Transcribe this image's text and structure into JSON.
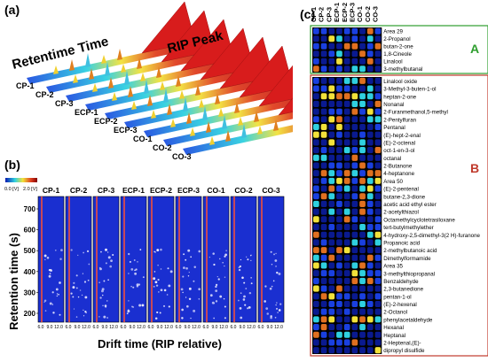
{
  "panel_a": {
    "label": "(a)",
    "axis_retention": "Retentime Time",
    "axis_rip": "RIP Peak",
    "samples": [
      "CP-1",
      "CP-2",
      "CP-3",
      "ECP-1",
      "ECP-2",
      "ECP-3",
      "CO-1",
      "CO-2",
      "CO-3"
    ]
  },
  "panel_b": {
    "label": "(b)",
    "colorbar": {
      "min_label": "0.0 [V]",
      "max_label": "2.0 [V]"
    },
    "samples": [
      "CP-1",
      "CP-2",
      "CP-3",
      "ECP-1",
      "ECP-2",
      "ECP-3",
      "CO-1",
      "CO-2",
      "CO-3"
    ],
    "y_axis_label": "Retention time (s)",
    "y_ticks": [
      "700",
      "600",
      "500",
      "400",
      "300",
      "200"
    ],
    "x_axis_label": "Drift time (RIP relative)",
    "x_ticks": [
      "6.0",
      "9.0",
      "12.0"
    ],
    "colors": {
      "background": "#1a2fd0",
      "spot": "#e8e8ff"
    }
  },
  "panel_c": {
    "label": "(c)",
    "columns": [
      "CP-1",
      "CP-2",
      "CP-3",
      "ECP-1",
      "ECP-2",
      "ECP-3",
      "CO-1",
      "CO-2",
      "CO-3"
    ],
    "group_a": {
      "label": "A",
      "color": "#2e9e2e",
      "compounds": [
        "Area 29",
        "2-Propanol",
        "butan-2-one",
        "1,8-Cineole",
        "Linalool",
        "3-methylbutanal"
      ]
    },
    "group_b": {
      "label": "B",
      "color": "#c0392b",
      "compounds": [
        "Linalool oxide",
        "3-Methyl-3-buten-1-ol",
        "heptan-2-one",
        "Nonanal",
        "2-Furanmethanol,5-methyl",
        "2-Pentylfuran",
        "Pentanal",
        "(E)-hept-2-enal",
        "(E)-2-octenal",
        "oct-1-en-3-ol",
        "octanal",
        "2-Butanone",
        "4-heptanone",
        "Area 50",
        "(E)-2-pentenal",
        "butane-2,3-dione",
        "acetic acid ethyl ester",
        "2-acetylthiazol",
        "Octamethylcyclotetrasiloxane",
        "tert-butylmethylether",
        "4-hydroxy-2,5-dimethyl-3(2 H)-furanone",
        "Propanoic acid",
        "2-methylbutanoic  acid",
        "Dimethylformamide",
        "Area 35",
        "3-methylthiopropanal",
        "Benzaldehyde",
        "2,3-butanedione",
        "pentan-1-ol",
        "(E)-2-hexenal",
        "2-Octanol",
        "phenylacetaldehyde",
        "Hexanal",
        "Heptanal",
        "2-Heptenal,(E)-",
        "dipropyl  disulfide"
      ]
    }
  }
}
